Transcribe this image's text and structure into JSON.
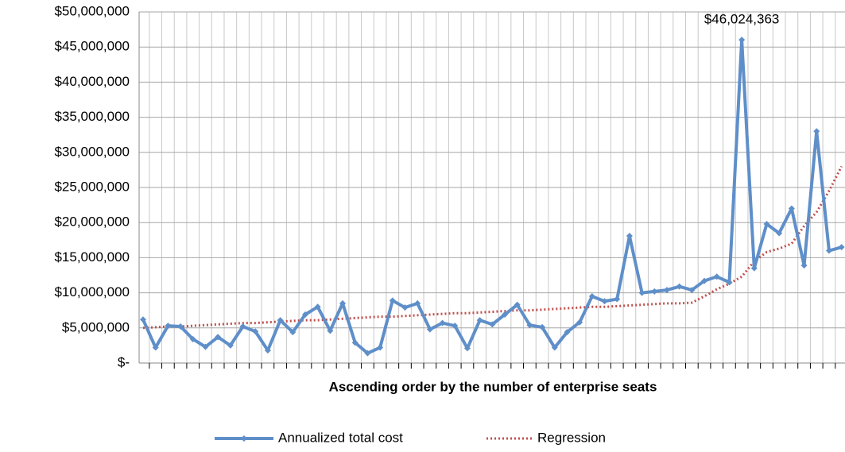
{
  "chart_data": {
    "type": "line",
    "x_label": "Ascending order by the number of enterprise seats",
    "categories": [
      null,
      null,
      null,
      null,
      null,
      null,
      null,
      null,
      null,
      null,
      null,
      null,
      null,
      null,
      null,
      null,
      null,
      null,
      null,
      null,
      null,
      null,
      null,
      null,
      null,
      null,
      null,
      null,
      null,
      null,
      null,
      null,
      null,
      null,
      null,
      null,
      null,
      null,
      null,
      null,
      null,
      null,
      null,
      null,
      null,
      null,
      null,
      null,
      null,
      null,
      null,
      null,
      null,
      null,
      null,
      null,
      null
    ],
    "series": [
      {
        "name": "Annualized total cost",
        "color": "#5f8fc9",
        "style": "solid",
        "marker": "diamond",
        "values": [
          6200000,
          2200000,
          5300000,
          5200000,
          3400000,
          2300000,
          3700000,
          2500000,
          5200000,
          4500000,
          1800000,
          6100000,
          4400000,
          6900000,
          8000000,
          4600000,
          8500000,
          2900000,
          1400000,
          2200000,
          8900000,
          7900000,
          8500000,
          4800000,
          5700000,
          5300000,
          2100000,
          6100000,
          5500000,
          6900000,
          8300000,
          5400000,
          5100000,
          2200000,
          4400000,
          5800000,
          9500000,
          8800000,
          9100000,
          18100000,
          10000000,
          10200000,
          10400000,
          10900000,
          10400000,
          11700000,
          12300000,
          11500000,
          46024363,
          13500000,
          19800000,
          18500000,
          22000000,
          13900000,
          33000000,
          16000000,
          16500000
        ],
        "value_labels": [
          null,
          null,
          null,
          null,
          null,
          null,
          null,
          null,
          null,
          null,
          null,
          null,
          null,
          null,
          null,
          null,
          null,
          null,
          null,
          null,
          null,
          null,
          null,
          null,
          null,
          null,
          null,
          null,
          null,
          null,
          null,
          null,
          null,
          null,
          null,
          null,
          null,
          null,
          null,
          null,
          null,
          null,
          null,
          null,
          null,
          null,
          null,
          null,
          "$46,024,363",
          null,
          null,
          null,
          null,
          null,
          null,
          null,
          null
        ]
      },
      {
        "name": "Regression",
        "color": "#c0504d",
        "style": "dotted",
        "values": [
          5000000,
          5100000,
          5200000,
          5200000,
          5300000,
          5400000,
          5500000,
          5600000,
          5700000,
          5700000,
          5800000,
          5900000,
          6000000,
          6100000,
          6100000,
          6200000,
          6300000,
          6400000,
          6500000,
          6600000,
          6600000,
          6700000,
          6800000,
          6900000,
          7000000,
          7100000,
          7100000,
          7200000,
          7300000,
          7400000,
          7500000,
          7500000,
          7600000,
          7700000,
          7800000,
          7900000,
          8000000,
          8000000,
          8100000,
          8200000,
          8300000,
          8400000,
          8500000,
          8500000,
          8600000,
          9500000,
          10500000,
          11300000,
          12300000,
          14500000,
          15800000,
          16300000,
          17000000,
          19500000,
          21500000,
          24500000,
          28000000
        ]
      }
    ],
    "ylim": [
      0,
      50000000
    ],
    "yticks": [
      {
        "value": 0,
        "label": "$-"
      },
      {
        "value": 5000000,
        "label": "$5,000,000"
      },
      {
        "value": 10000000,
        "label": "$10,000,000"
      },
      {
        "value": 15000000,
        "label": "$15,000,000"
      },
      {
        "value": 20000000,
        "label": "$20,000,000"
      },
      {
        "value": 25000000,
        "label": "$25,000,000"
      },
      {
        "value": 30000000,
        "label": "$30,000,000"
      },
      {
        "value": 35000000,
        "label": "$35,000,000"
      },
      {
        "value": 40000000,
        "label": "$40,000,000"
      },
      {
        "value": 45000000,
        "label": "$45,000,000"
      },
      {
        "value": 50000000,
        "label": "$50,000,000"
      }
    ],
    "grid": true,
    "legend": "bottom"
  }
}
